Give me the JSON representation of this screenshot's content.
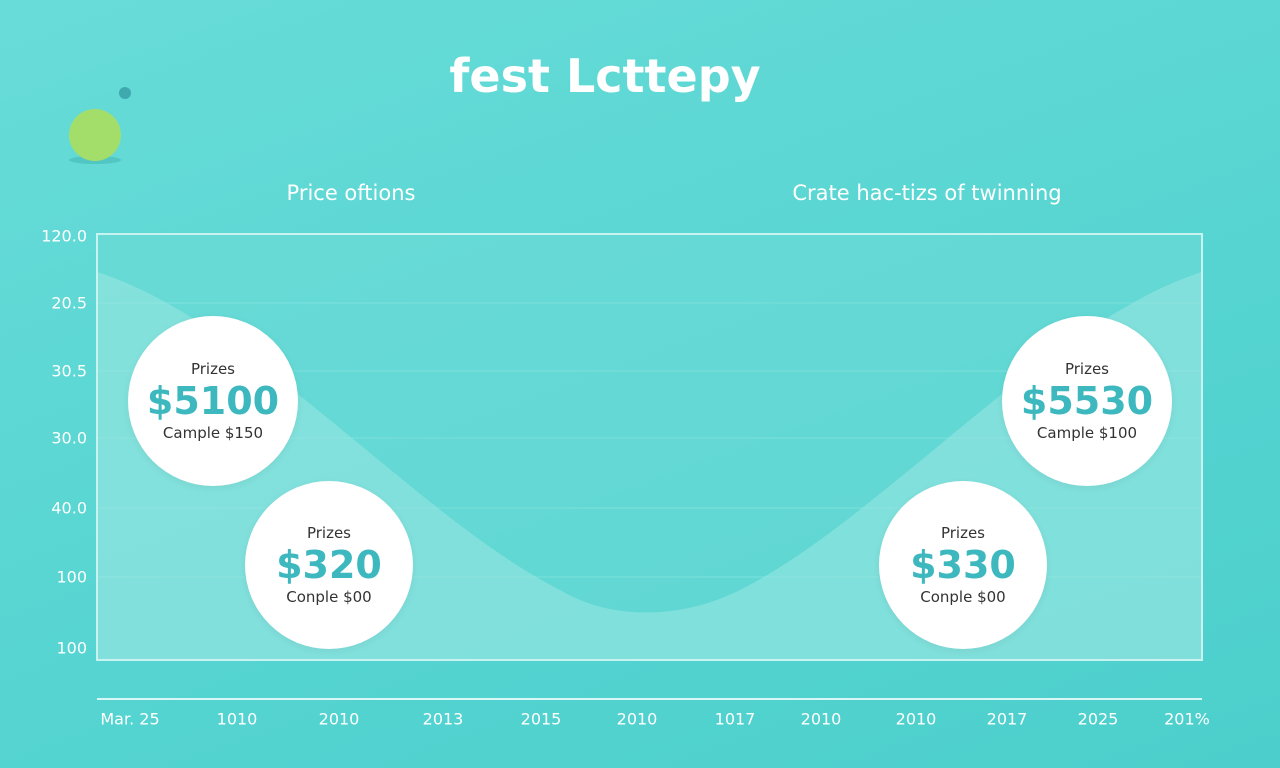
{
  "header": {
    "title": "fest Lcttepy"
  },
  "sections": {
    "left_heading": "Price oftions",
    "right_heading": "Crate hac-tizs of twinning"
  },
  "y_labels": [
    "120.0",
    "20.5",
    "30.5",
    "30.0",
    "40.0",
    "100",
    "100"
  ],
  "x_labels": [
    "Mar. 25",
    "1010",
    "2010",
    "2013",
    "2015",
    "2010",
    "1017",
    "2010",
    "2010",
    "2017",
    "2025",
    "201%"
  ],
  "cards": [
    {
      "label": "Prizes",
      "amount": "$5100",
      "note": "Cample $150"
    },
    {
      "label": "Prizes",
      "amount": "$320",
      "note": "Conple $00"
    },
    {
      "label": "Prizes",
      "amount": "$5530",
      "note": "Cample $100"
    },
    {
      "label": "Prizes",
      "amount": "$330",
      "note": "Conple $00"
    }
  ]
}
